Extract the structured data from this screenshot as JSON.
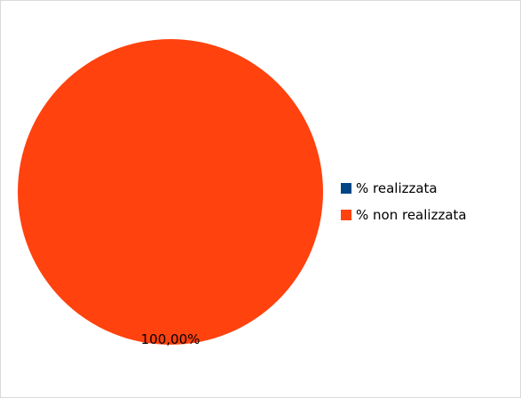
{
  "chart_data": {
    "type": "pie",
    "title": "",
    "categories": [
      "% realizzata",
      "% non realizzata"
    ],
    "values": [
      0,
      100
    ],
    "data_labels": [
      "",
      "100,00%"
    ],
    "colors": [
      "#004586",
      "#ff420e"
    ],
    "legend_position": "right"
  }
}
